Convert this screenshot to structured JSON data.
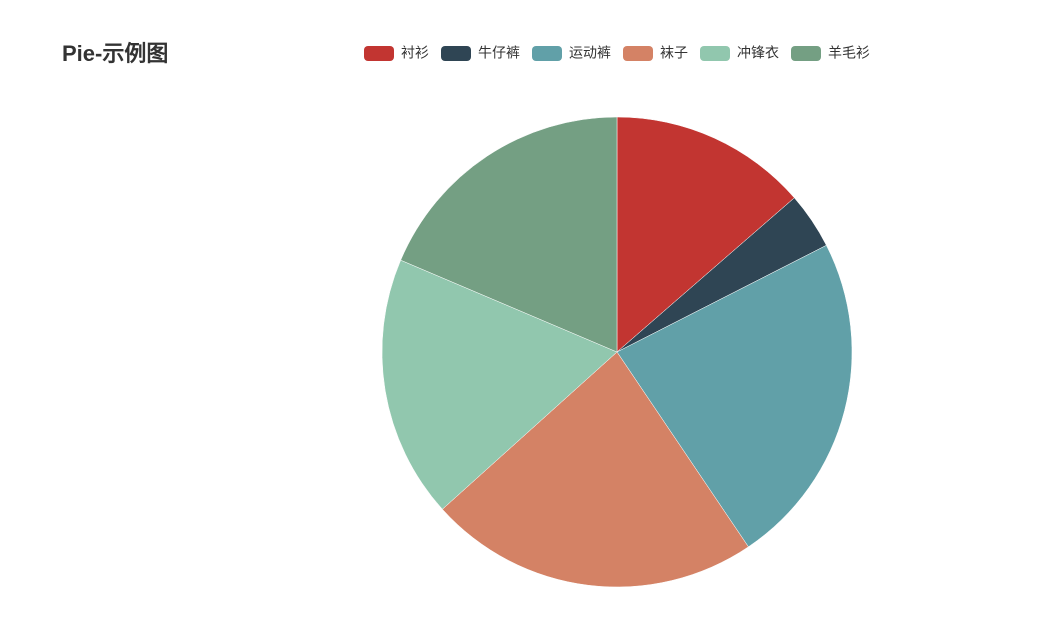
{
  "chart_data": {
    "type": "pie",
    "title": "Pie-示例图",
    "categories": [
      "衬衫",
      "牛仔裤",
      "运动裤",
      "袜子",
      "冲锋衣",
      "羊毛衫"
    ],
    "values": [
      49,
      14,
      83,
      82,
      65,
      67
    ],
    "colors": [
      "#c23531",
      "#2f4554",
      "#61a0a8",
      "#d48265",
      "#91c7ae",
      "#749f83"
    ],
    "legend": "top"
  }
}
